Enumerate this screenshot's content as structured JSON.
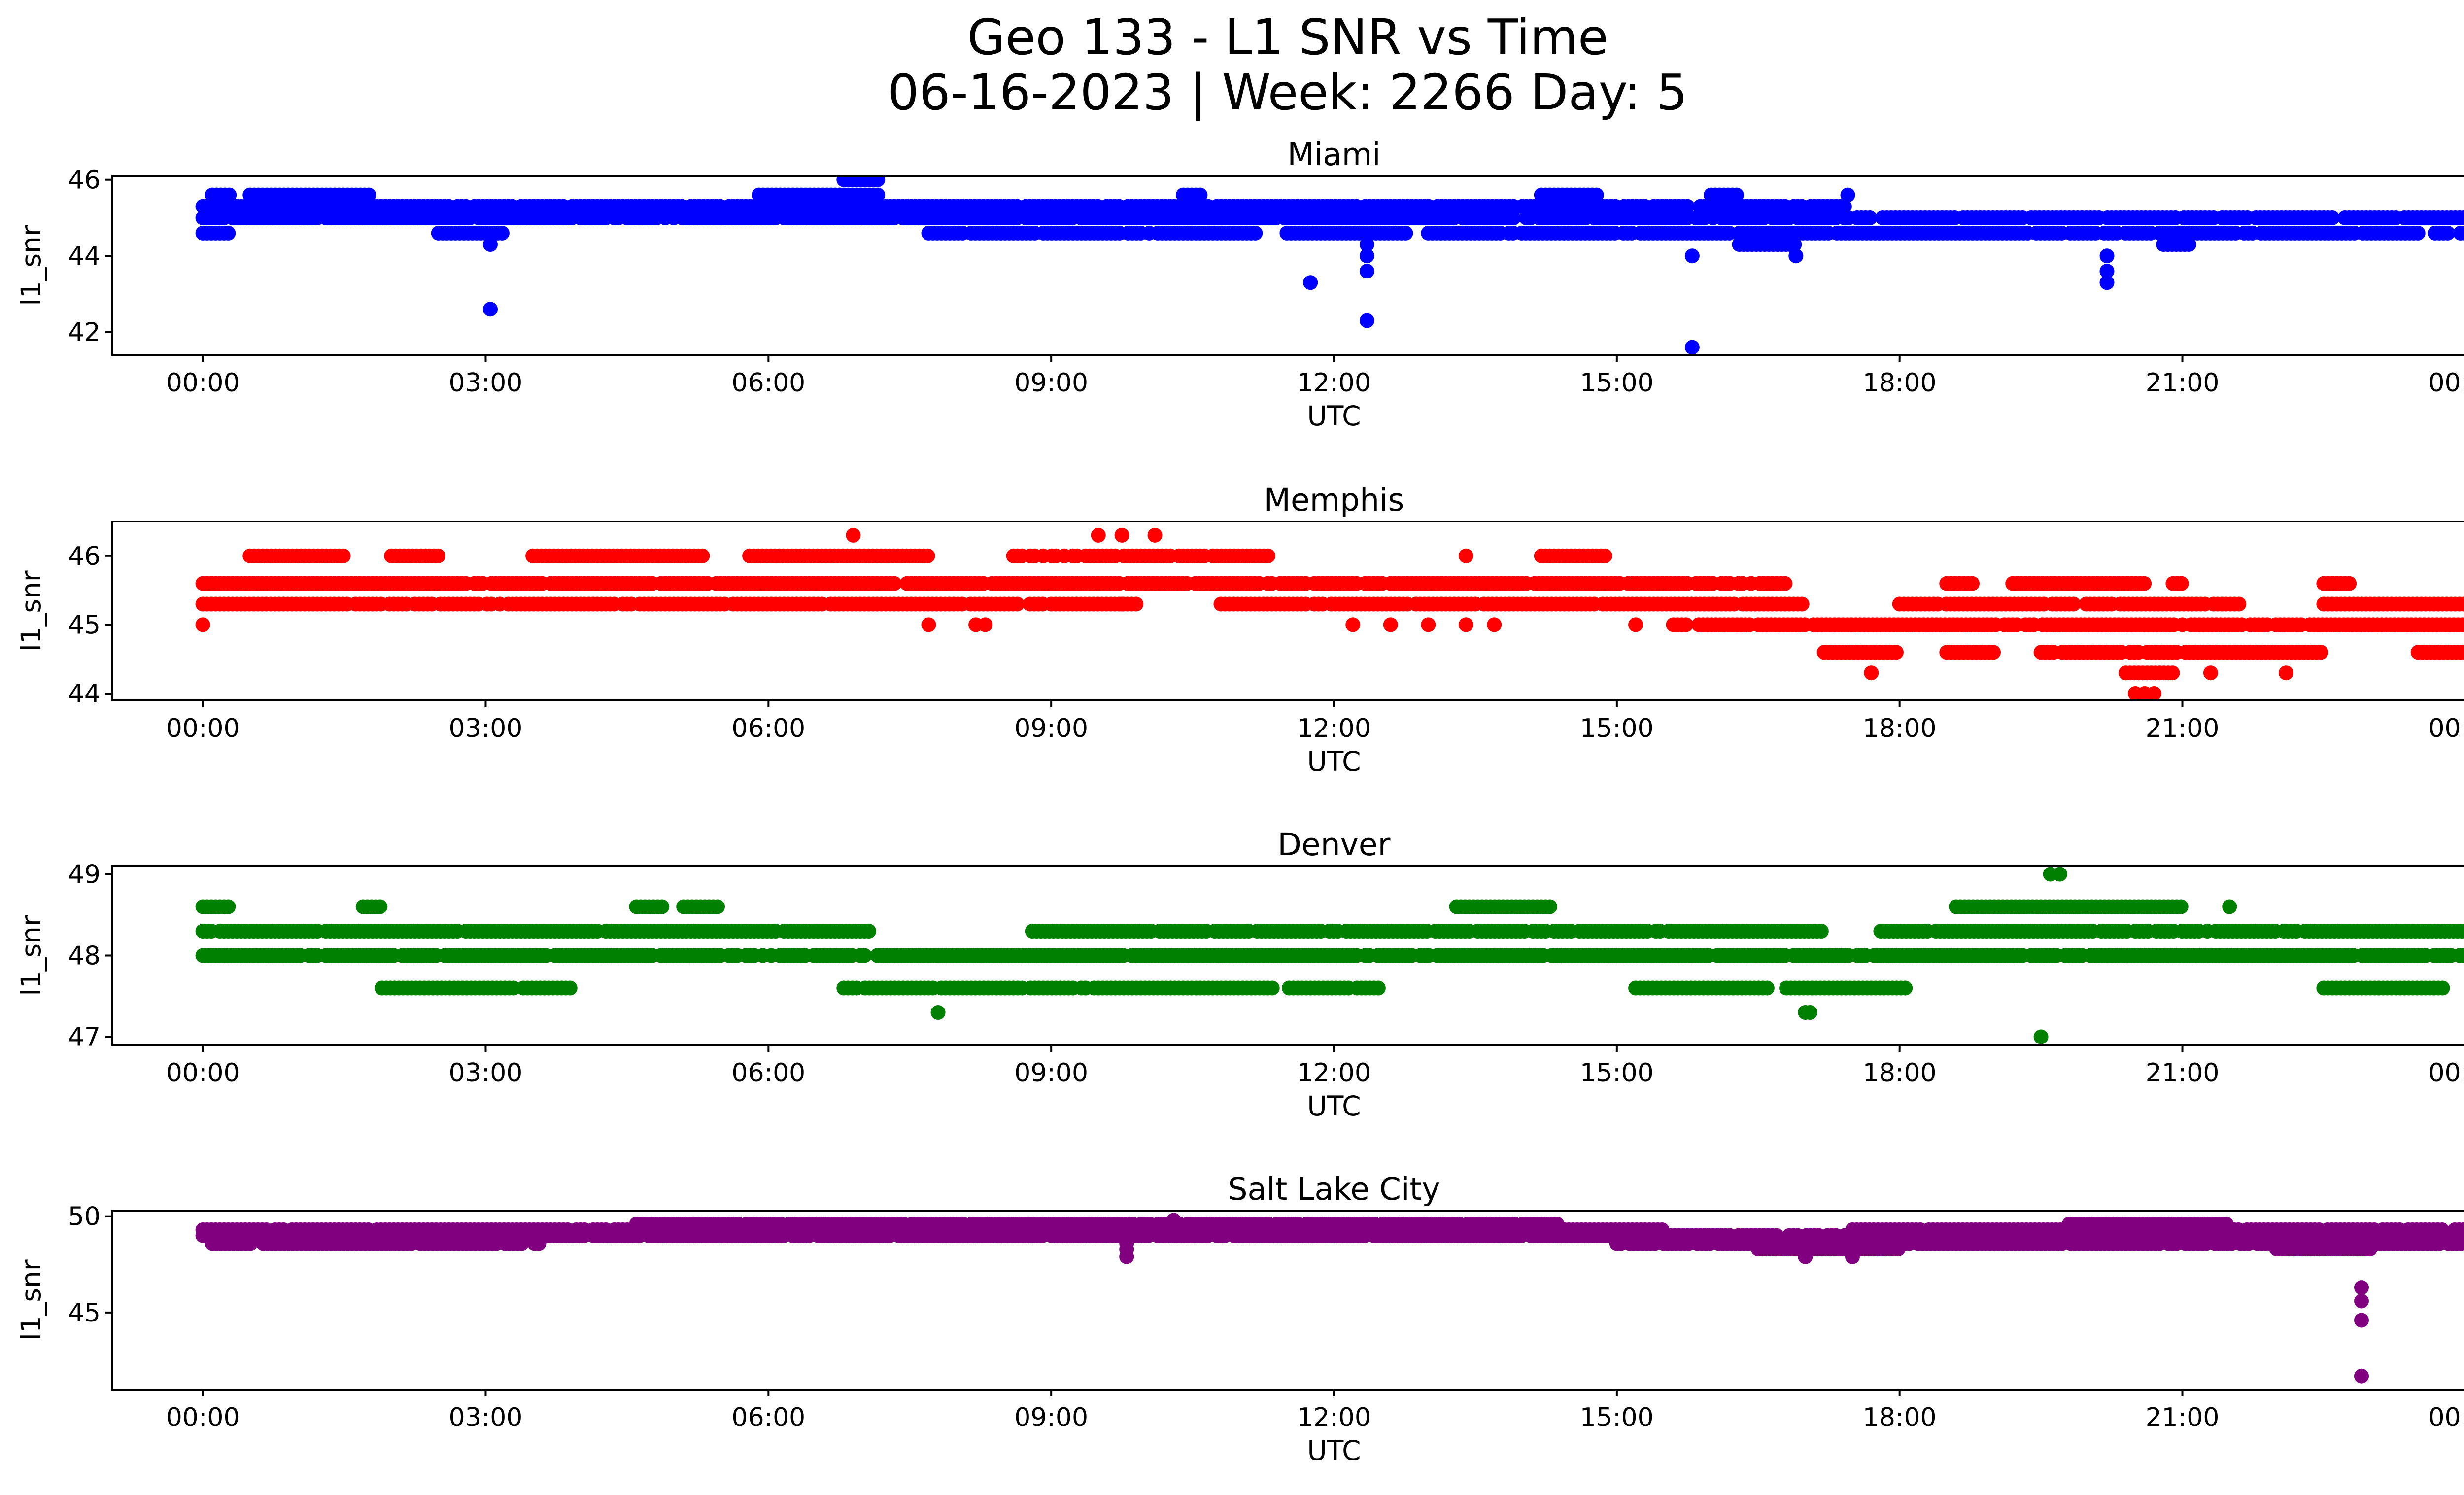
{
  "title_line1": "Geo 133 - L1 SNR vs Time",
  "title_line2": "06-16-2023 | Week: 2266 Day: 5",
  "chart_data": [
    {
      "type": "scatter",
      "title": "Miami",
      "xlabel": "UTC",
      "ylabel": "l1_snr",
      "color": "#0000ff",
      "xlim": [
        0,
        24
      ],
      "ylim": [
        41.4,
        46.1
      ],
      "x_ticks": [
        "00:00",
        "03:00",
        "06:00",
        "09:00",
        "12:00",
        "15:00",
        "18:00",
        "21:00",
        "00:00"
      ],
      "y_ticks": [
        42,
        44,
        46
      ],
      "bands": [
        {
          "y": 45.6,
          "segments": [
            [
              0.1,
              0.3
            ],
            [
              0.5,
              1.8
            ],
            [
              5.9,
              7.2
            ],
            [
              10.4,
              10.6
            ],
            [
              14.2,
              14.8
            ],
            [
              16.0,
              16.3
            ]
          ]
        },
        {
          "y": 45.3,
          "segments": [
            [
              0.0,
              17.5
            ]
          ]
        },
        {
          "y": 45.0,
          "segments": [
            [
              0.0,
              24.0
            ]
          ]
        },
        {
          "y": 44.6,
          "segments": [
            [
              0.0,
              0.3
            ],
            [
              2.5,
              3.2
            ],
            [
              7.7,
              11.2
            ],
            [
              11.5,
              12.8
            ],
            [
              13.0,
              16.2
            ],
            [
              16.3,
              24.0
            ]
          ]
        },
        {
          "y": 44.3,
          "segments": [
            [
              16.3,
              16.9
            ],
            [
              20.8,
              21.1
            ]
          ]
        },
        {
          "y": 46.0,
          "segments": [
            [
              6.8,
              7.2
            ]
          ]
        }
      ],
      "points": [
        [
          3.05,
          42.6
        ],
        [
          3.05,
          44.3
        ],
        [
          11.75,
          43.3
        ],
        [
          12.35,
          44.3
        ],
        [
          12.35,
          44.0
        ],
        [
          12.35,
          43.6
        ],
        [
          12.35,
          42.3
        ],
        [
          15.8,
          44.0
        ],
        [
          15.8,
          41.6
        ],
        [
          20.2,
          44.0
        ],
        [
          20.2,
          43.6
        ],
        [
          20.2,
          43.3
        ],
        [
          16.9,
          44.0
        ],
        [
          17.45,
          45.6
        ]
      ]
    },
    {
      "type": "scatter",
      "title": "Memphis",
      "xlabel": "UTC",
      "ylabel": "l1_snr",
      "color": "#ff0000",
      "xlim": [
        0,
        24
      ],
      "ylim": [
        43.9,
        46.5
      ],
      "x_ticks": [
        "00:00",
        "03:00",
        "06:00",
        "09:00",
        "12:00",
        "15:00",
        "18:00",
        "21:00",
        "00:00"
      ],
      "y_ticks": [
        44,
        45,
        46
      ],
      "bands": [
        {
          "y": 46.0,
          "segments": [
            [
              0.5,
              1.5
            ],
            [
              2.0,
              2.5
            ],
            [
              3.5,
              5.3
            ],
            [
              5.8,
              7.7
            ],
            [
              8.6,
              11.3
            ],
            [
              14.2,
              14.9
            ]
          ]
        },
        {
          "y": 45.6,
          "segments": [
            [
              0.0,
              16.8
            ],
            [
              18.5,
              18.8
            ],
            [
              19.2,
              20.6
            ],
            [
              20.9,
              21.0
            ],
            [
              22.5,
              22.8
            ]
          ]
        },
        {
          "y": 45.3,
          "segments": [
            [
              0.0,
              9.9
            ],
            [
              10.8,
              17.0
            ],
            [
              18.0,
              21.6
            ],
            [
              22.5,
              24.0
            ]
          ]
        },
        {
          "y": 45.0,
          "segments": [
            [
              15.6,
              24.0
            ]
          ]
        },
        {
          "y": 44.6,
          "segments": [
            [
              17.2,
              18.0
            ],
            [
              18.5,
              19.0
            ],
            [
              19.5,
              22.5
            ],
            [
              23.5,
              24.0
            ]
          ]
        },
        {
          "y": 44.3,
          "segments": [
            [
              20.4,
              20.9
            ]
          ]
        }
      ],
      "points": [
        [
          0.0,
          45.0
        ],
        [
          6.9,
          46.3
        ],
        [
          9.5,
          46.3
        ],
        [
          9.75,
          46.3
        ],
        [
          10.1,
          46.3
        ],
        [
          9.75,
          45.3
        ],
        [
          7.7,
          45.0
        ],
        [
          8.2,
          45.0
        ],
        [
          8.3,
          45.0
        ],
        [
          12.2,
          45.0
        ],
        [
          12.6,
          45.0
        ],
        [
          13.0,
          45.0
        ],
        [
          13.4,
          45.0
        ],
        [
          13.7,
          45.0
        ],
        [
          15.2,
          45.0
        ],
        [
          13.4,
          46.0
        ],
        [
          17.7,
          44.3
        ],
        [
          21.3,
          44.3
        ],
        [
          22.1,
          44.3
        ],
        [
          20.5,
          44.0
        ],
        [
          20.6,
          44.0
        ],
        [
          20.7,
          44.0
        ]
      ]
    },
    {
      "type": "scatter",
      "title": "Denver",
      "xlabel": "UTC",
      "ylabel": "l1_snr",
      "color": "#008000",
      "xlim": [
        0,
        24
      ],
      "ylim": [
        46.9,
        49.1
      ],
      "x_ticks": [
        "00:00",
        "03:00",
        "06:00",
        "09:00",
        "12:00",
        "15:00",
        "18:00",
        "21:00",
        "00:00"
      ],
      "y_ticks": [
        47,
        48,
        49
      ],
      "bands": [
        {
          "y": 48.6,
          "segments": [
            [
              0.0,
              0.3
            ],
            [
              1.7,
              1.9
            ],
            [
              4.6,
              4.9
            ],
            [
              5.1,
              5.5
            ],
            [
              13.3,
              14.3
            ],
            [
              18.6,
              21.0
            ]
          ]
        },
        {
          "y": 48.3,
          "segments": [
            [
              0.0,
              7.1
            ],
            [
              8.8,
              17.2
            ],
            [
              17.8,
              24.0
            ]
          ]
        },
        {
          "y": 48.0,
          "segments": [
            [
              0.0,
              24.0
            ]
          ]
        },
        {
          "y": 47.6,
          "segments": [
            [
              1.9,
              3.3
            ],
            [
              3.4,
              3.9
            ],
            [
              6.8,
              12.5
            ],
            [
              15.2,
              16.6
            ],
            [
              16.8,
              18.1
            ],
            [
              22.5,
              23.8
            ]
          ]
        }
      ],
      "points": [
        [
          7.8,
          47.3
        ],
        [
          17.0,
          47.3
        ],
        [
          17.05,
          47.3
        ],
        [
          19.5,
          47.0
        ],
        [
          19.6,
          49.0
        ],
        [
          19.7,
          49.0
        ],
        [
          21.5,
          48.6
        ]
      ]
    },
    {
      "type": "scatter",
      "title": "Salt Lake City",
      "xlabel": "UTC",
      "ylabel": "l1_snr",
      "color": "#800080",
      "xlim": [
        0,
        24
      ],
      "ylim": [
        41.0,
        50.3
      ],
      "x_ticks": [
        "00:00",
        "03:00",
        "06:00",
        "09:00",
        "12:00",
        "15:00",
        "18:00",
        "21:00",
        "00:00"
      ],
      "y_ticks": [
        45,
        50
      ],
      "bands": [
        {
          "y": 49.6,
          "segments": [
            [
              4.6,
              14.4
            ],
            [
              19.8,
              21.5
            ]
          ]
        },
        {
          "y": 49.3,
          "segments": [
            [
              0.0,
              15.5
            ],
            [
              17.5,
              24.0
            ]
          ]
        },
        {
          "y": 49.0,
          "segments": [
            [
              0.0,
              24.0
            ]
          ]
        },
        {
          "y": 48.6,
          "segments": [
            [
              0.1,
              3.6
            ],
            [
              15.0,
              24.0
            ]
          ]
        },
        {
          "y": 48.3,
          "segments": [
            [
              16.5,
              18.0
            ],
            [
              22.0,
              23.0
            ]
          ]
        }
      ],
      "points": [
        [
          9.8,
          48.6
        ],
        [
          9.8,
          48.3
        ],
        [
          9.8,
          47.9
        ],
        [
          10.3,
          49.8
        ],
        [
          17.0,
          47.9
        ],
        [
          17.5,
          47.9
        ],
        [
          22.9,
          46.3
        ],
        [
          22.9,
          45.6
        ],
        [
          22.9,
          44.6
        ],
        [
          22.9,
          41.7
        ]
      ]
    }
  ]
}
